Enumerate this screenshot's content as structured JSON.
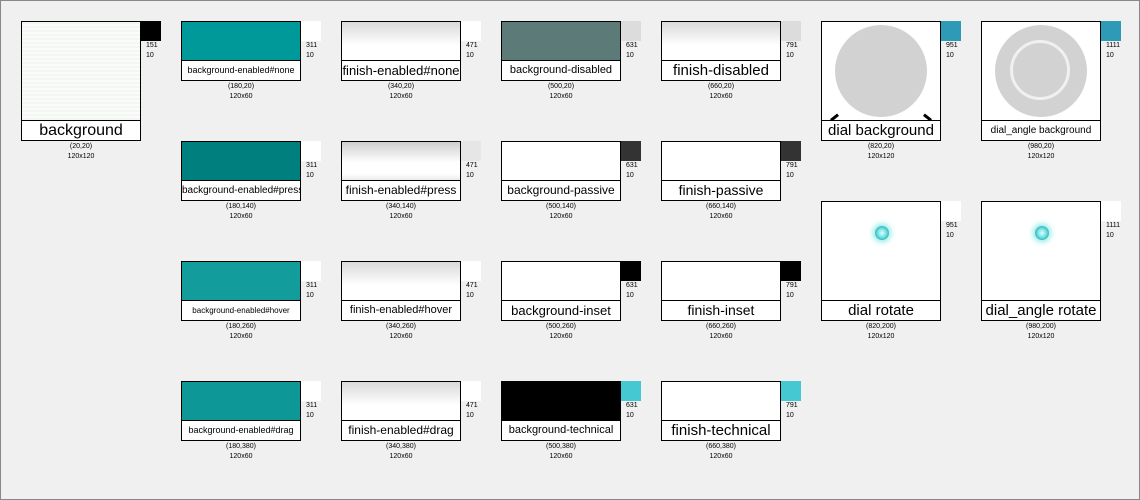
{
  "window": {
    "background_color": "#f0f0f0"
  },
  "tiles": [
    {
      "id": "background",
      "label": "background",
      "offset_x": "151",
      "offset_y": "10",
      "pos": "(20,20)",
      "size": "120x120",
      "fill": "#f6f8f6",
      "swatch": "#000000"
    },
    {
      "id": "background-enabled-none",
      "label": "background-enabled#none",
      "offset_x": "311",
      "offset_y": "10",
      "pos": "(180,20)",
      "size": "120x60",
      "fill": "#009999",
      "swatch": "#ffffff"
    },
    {
      "id": "background-enabled-press",
      "label": "background-enabled#press",
      "offset_x": "311",
      "offset_y": "10",
      "pos": "(180,140)",
      "size": "120x60",
      "fill": "#007f7f",
      "swatch": "#ffffff"
    },
    {
      "id": "background-enabled-hover",
      "label": "background-enabled#hover",
      "offset_x": "311",
      "offset_y": "10",
      "pos": "(180,260)",
      "size": "120x60",
      "fill": "#139c9c",
      "swatch": "#ffffff"
    },
    {
      "id": "background-enabled-drag",
      "label": "background-enabled#drag",
      "offset_x": "311",
      "offset_y": "10",
      "pos": "(180,380)",
      "size": "120x60",
      "fill": "#0d9797",
      "swatch": "#ffffff"
    },
    {
      "id": "finish-enabled-none",
      "label": "finish-enabled#none",
      "offset_x": "471",
      "offset_y": "10",
      "pos": "(340,20)",
      "size": "120x60",
      "swatch": "#ffffff"
    },
    {
      "id": "finish-enabled-press",
      "label": "finish-enabled#press",
      "offset_x": "471",
      "offset_y": "10",
      "pos": "(340,140)",
      "size": "120x60",
      "swatch": "#e6e6e6"
    },
    {
      "id": "finish-enabled-hover",
      "label": "finish-enabled#hover",
      "offset_x": "471",
      "offset_y": "10",
      "pos": "(340,260)",
      "size": "120x60",
      "swatch": "#ffffff"
    },
    {
      "id": "finish-enabled-drag",
      "label": "finish-enabled#drag",
      "offset_x": "471",
      "offset_y": "10",
      "pos": "(340,380)",
      "size": "120x60",
      "swatch": "#ffffff"
    },
    {
      "id": "background-disabled",
      "label": "background-disabled",
      "offset_x": "631",
      "offset_y": "10",
      "pos": "(500,20)",
      "size": "120x60",
      "fill": "#5c7a77",
      "swatch": "#dcdcdc"
    },
    {
      "id": "background-passive",
      "label": "background-passive",
      "offset_x": "631",
      "offset_y": "10",
      "pos": "(500,140)",
      "size": "120x60",
      "fill": "#ffffff",
      "swatch": "#333333"
    },
    {
      "id": "background-inset",
      "label": "background-inset",
      "offset_x": "631",
      "offset_y": "10",
      "pos": "(500,260)",
      "size": "120x60",
      "fill": "#ffffff",
      "swatch": "#000000"
    },
    {
      "id": "background-technical",
      "label": "background-technical",
      "offset_x": "631",
      "offset_y": "10",
      "pos": "(500,380)",
      "size": "120x60",
      "fill": "#000000",
      "swatch": "#45c8d2"
    },
    {
      "id": "finish-disabled",
      "label": "finish-disabled",
      "offset_x": "791",
      "offset_y": "10",
      "pos": "(660,20)",
      "size": "120x60",
      "swatch": "#dcdcdc"
    },
    {
      "id": "finish-passive",
      "label": "finish-passive",
      "offset_x": "791",
      "offset_y": "10",
      "pos": "(660,140)",
      "size": "120x60",
      "swatch": "#333333"
    },
    {
      "id": "finish-inset",
      "label": "finish-inset",
      "offset_x": "791",
      "offset_y": "10",
      "pos": "(660,260)",
      "size": "120x60",
      "swatch": "#000000"
    },
    {
      "id": "finish-technical",
      "label": "finish-technical",
      "offset_x": "791",
      "offset_y": "10",
      "pos": "(660,380)",
      "size": "120x60",
      "swatch": "#45c8d2"
    },
    {
      "id": "dial-background",
      "label": "dial background",
      "offset_x": "951",
      "offset_y": "10",
      "pos": "(820,20)",
      "size": "120x120",
      "swatch": "#2e9ab5"
    },
    {
      "id": "dial-angle-background",
      "label": "dial_angle background",
      "offset_x": "1111",
      "offset_y": "10",
      "pos": "(980,20)",
      "size": "120x120",
      "swatch": "#2e9ab5"
    },
    {
      "id": "dial-rotate",
      "label": "dial rotate",
      "offset_x": "951",
      "offset_y": "10",
      "pos": "(820,200)",
      "size": "120x120",
      "swatch": "#ffffff"
    },
    {
      "id": "dial-angle-rotate",
      "label": "dial_angle rotate",
      "offset_x": "1111",
      "offset_y": "10",
      "pos": "(980,200)",
      "size": "120x120",
      "swatch": "#ffffff"
    }
  ],
  "icons": {
    "dial_knob": "knob-icon",
    "dial_indicator": "glow-dot-icon"
  }
}
